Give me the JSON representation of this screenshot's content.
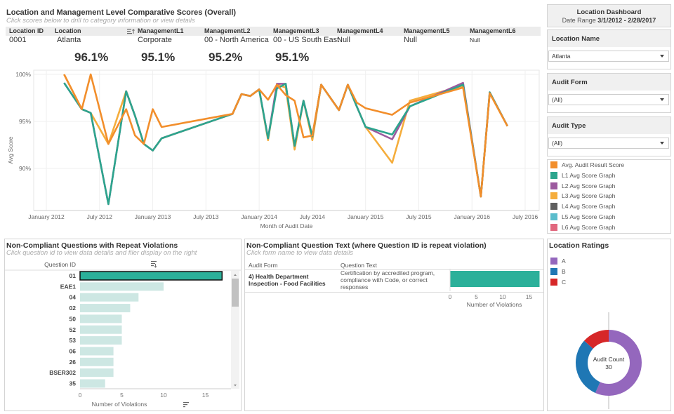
{
  "header": {
    "title": "Location and Management Level Comparative Scores (Overall)",
    "subtitle": "Click scores below to drill to category information or view details",
    "columns": [
      {
        "label": "Location ID",
        "value": "0001"
      },
      {
        "label": "Location",
        "value": "Atlanta"
      },
      {
        "label": "ManagementL1",
        "value": "Corporate"
      },
      {
        "label": "ManagementL2",
        "value": "00 - North America"
      },
      {
        "label": "ManagementL3",
        "value": "00 - US South East"
      },
      {
        "label": "ManagementL4",
        "value": "Null"
      },
      {
        "label": "ManagementL5",
        "value": "Null"
      },
      {
        "label": "ManagementL6",
        "value": "Null"
      }
    ],
    "scores": [
      "96.1%",
      "95.1%",
      "95.2%",
      "95.1%"
    ]
  },
  "sidebar": {
    "dashboard_title": "Location Dashboard",
    "date_range_label": "Date Range",
    "date_range_value": "3/1/2012 - 2/28/2017",
    "filters": [
      {
        "label": "Location Name",
        "value": "Atlanta"
      },
      {
        "label": "Audit Form",
        "value": "(All)"
      },
      {
        "label": "Audit Type",
        "value": "(All)"
      }
    ],
    "legend": [
      {
        "label": "Avg. Audit Result Score",
        "color": "#f28e2b"
      },
      {
        "label": "L1 Avg Score Graph",
        "color": "#2ca58d"
      },
      {
        "label": "L2 Avg Score Graph",
        "color": "#9c5a9e"
      },
      {
        "label": "L3 Avg Score Graph",
        "color": "#f5ad3c"
      },
      {
        "label": "L4 Avg Score Graph",
        "color": "#5f5f5f"
      },
      {
        "label": "L5 Avg Score Graph",
        "color": "#5bbdcc"
      },
      {
        "label": "L6 Avg Score Graph",
        "color": "#e1687e"
      }
    ]
  },
  "chart_data": [
    {
      "type": "line",
      "title": "",
      "xlabel": "Month of Audit Date",
      "ylabel": "Avg Score",
      "ylim": [
        86,
        100.5
      ],
      "y_ticks": [
        "90%",
        "95%",
        "100%"
      ],
      "x_ticks": [
        "January 2012",
        "July 2012",
        "January 2013",
        "July 2013",
        "January 2014",
        "July 2014",
        "January 2015",
        "July 2015",
        "January 2016",
        "July 2016"
      ],
      "grid": true,
      "x": [
        "2012-03",
        "2012-05",
        "2012-06",
        "2012-08",
        "2012-10",
        "2012-11",
        "2012-12",
        "2013-01",
        "2013-02",
        "2013-10",
        "2013-11",
        "2013-12",
        "2014-01",
        "2014-02",
        "2014-03",
        "2014-04",
        "2014-05",
        "2014-06",
        "2014-07",
        "2014-08",
        "2014-10",
        "2014-11",
        "2014-12",
        "2015-01",
        "2015-04",
        "2015-06",
        "2015-12",
        "2016-02",
        "2016-03",
        "2016-05"
      ],
      "series": [
        {
          "name": "Avg. Audit Result Score",
          "color": "#f28e2b",
          "values": [
            100,
            96.3,
            100,
            92.6,
            96.3,
            93.5,
            92.6,
            96.3,
            94.4,
            95.8,
            97.9,
            97.7,
            98.4,
            97.3,
            98.9,
            97.8,
            97.2,
            93.3,
            93.5,
            98.9,
            96.2,
            98.9,
            97.0,
            96.4,
            95.7,
            97.0,
            98.6,
            87.0,
            98.0,
            94.5
          ]
        },
        {
          "name": "L1 Avg Score Graph",
          "color": "#2ca58d",
          "values": [
            99.1,
            96.3,
            95.9,
            86.2,
            98.2,
            95.6,
            92.6,
            91.9,
            93.2,
            95.8,
            97.9,
            97.7,
            98.4,
            93.2,
            98.5,
            99.0,
            92.4,
            97.2,
            93.4,
            98.9,
            96.2,
            98.9,
            96.6,
            94.4,
            93.6,
            96.6,
            98.9,
            87.0,
            98.1,
            94.5
          ]
        },
        {
          "name": "L2 Avg Score Graph",
          "color": "#9c5a9e",
          "values": [
            99.1,
            96.3,
            95.9,
            86.2,
            98.2,
            95.6,
            92.6,
            91.9,
            93.2,
            95.8,
            97.9,
            97.7,
            98.4,
            93.2,
            99.0,
            99.0,
            92.4,
            97.2,
            93.4,
            98.9,
            96.2,
            98.9,
            96.6,
            94.4,
            93.1,
            96.6,
            99.1,
            87.0,
            98.1,
            94.5
          ]
        },
        {
          "name": "L3 Avg Score Graph",
          "color": "#f5ad3c",
          "values": [
            100,
            96.3,
            95.9,
            92.6,
            98.2,
            95.6,
            92.6,
            91.9,
            93.2,
            95.8,
            97.9,
            97.7,
            98.4,
            93.0,
            98.9,
            98.6,
            92.0,
            97.2,
            93.0,
            98.9,
            96.2,
            98.9,
            96.6,
            94.4,
            90.6,
            97.2,
            98.8,
            87.0,
            98.0,
            94.5
          ]
        }
      ]
    },
    {
      "type": "bar",
      "title": "Non-Compliant Questions with Repeat Violations",
      "subtitle": "Click question id to view data details and filer display on the right",
      "ylabel": "Question ID",
      "xlabel": "Number of Violations",
      "xlim": [
        0,
        18
      ],
      "x_ticks": [
        0,
        5,
        10,
        15
      ],
      "categories": [
        "01",
        "EAE1",
        "04",
        "02",
        "50",
        "52",
        "53",
        "06",
        "26",
        "BSER302",
        "35"
      ],
      "values": [
        17,
        10,
        7,
        6,
        5,
        5,
        5,
        4,
        4,
        4,
        3
      ],
      "selected": "01",
      "colors": {
        "selected": "#2bb09a",
        "default": "#cde7e3"
      }
    },
    {
      "type": "bar",
      "title": "Non-Compliant Question Text (where Question ID is repeat violation)",
      "subtitle": "Click form name to view data details",
      "columns": [
        "Audit Form",
        "Question Text"
      ],
      "rows": [
        {
          "audit_form": "4) Health Department Inspection - Food Facilities",
          "question_text": "Certification by accredited program, compliance with Code, or correct responses",
          "value": 17
        }
      ],
      "xlabel": "Number of Violations",
      "xlim": [
        0,
        17.5
      ],
      "x_ticks": [
        0,
        5,
        10,
        15
      ]
    },
    {
      "type": "pie",
      "title": "Location Ratings",
      "center_label": "Audit Count",
      "center_value": "30",
      "categories": [
        "A",
        "B",
        "C"
      ],
      "values": [
        17,
        9,
        4
      ],
      "colors": [
        "#9467bd",
        "#1f77b4",
        "#d62728"
      ]
    }
  ]
}
